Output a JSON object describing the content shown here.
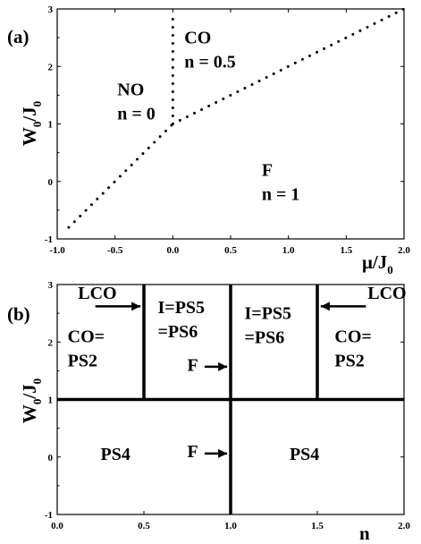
{
  "chart_data": [
    {
      "type": "line",
      "panel_label": "(a)",
      "xlabel": "μ/J₀",
      "ylabel": "W₀/J₀",
      "xlim": [
        -1.0,
        2.0
      ],
      "ylim": [
        -1,
        3
      ],
      "xticks": [
        "-1.0",
        "-0.5",
        "0.0",
        "0.5",
        "1.0",
        "1.5",
        "2.0"
      ],
      "yticks": [
        "-1",
        "0",
        "1",
        "2",
        "3"
      ],
      "series": [
        {
          "style": "dotted",
          "x": [
            -0.9,
            0.0
          ],
          "y": [
            -0.8,
            1.0
          ]
        },
        {
          "style": "dotted",
          "x": [
            0.0,
            0.0
          ],
          "y": [
            1.0,
            2.85
          ]
        },
        {
          "style": "dotted",
          "x": [
            0.0,
            2.0
          ],
          "y": [
            1.0,
            3.0
          ]
        }
      ],
      "regions": [
        {
          "lines": [
            "NO",
            "n = 0"
          ],
          "x": -0.48,
          "y": 1.5
        },
        {
          "lines": [
            "CO",
            "n = 0.5"
          ],
          "x": 0.1,
          "y": 2.4
        },
        {
          "lines": [
            "F",
            "n = 1"
          ],
          "x": 0.77,
          "y": 0.1
        }
      ]
    },
    {
      "type": "line",
      "panel_label": "(b)",
      "xlabel": "n",
      "ylabel": "W₀/J₀",
      "xlim": [
        0.0,
        2.0
      ],
      "ylim": [
        -1,
        3
      ],
      "xticks": [
        "0.0",
        "0.5",
        "1.0",
        "1.5",
        "2.0"
      ],
      "yticks": [
        "-1",
        "0",
        "1",
        "2",
        "3"
      ],
      "series": [
        {
          "style": "solid",
          "x": [
            0.0,
            2.0
          ],
          "y": [
            1,
            1
          ]
        },
        {
          "style": "solid",
          "x": [
            0.5,
            0.5
          ],
          "y": [
            1,
            3
          ]
        },
        {
          "style": "solid",
          "x": [
            1.0,
            1.0
          ],
          "y": [
            -1,
            3
          ]
        },
        {
          "style": "solid",
          "x": [
            1.5,
            1.5
          ],
          "y": [
            1,
            3
          ]
        }
      ],
      "regions": [
        {
          "lines": [
            "CO=",
            "PS2"
          ],
          "x": 0.06,
          "y": 2.0
        },
        {
          "lines": [
            "I=PS5",
            "=PS6"
          ],
          "x": 0.58,
          "y": 2.5
        },
        {
          "lines": [
            "I=PS5",
            "=PS6"
          ],
          "x": 1.08,
          "y": 2.4
        },
        {
          "lines": [
            "CO=",
            "PS2"
          ],
          "x": 1.6,
          "y": 2.0
        },
        {
          "lines": [
            "PS4"
          ],
          "x": 0.25,
          "y": -0.05
        },
        {
          "lines": [
            "PS4"
          ],
          "x": 1.34,
          "y": -0.05
        }
      ],
      "arrows": [
        {
          "text": "LCO",
          "dir": "right",
          "x_from": 0.22,
          "x_to": 0.48,
          "y": 2.62,
          "tx": 0.12,
          "ty": 2.75
        },
        {
          "text": "LCO",
          "dir": "left",
          "x_from": 1.78,
          "x_to": 1.52,
          "y": 2.62,
          "tx": 1.79,
          "ty": 2.75
        },
        {
          "text": "F",
          "dir": "right",
          "x_from": 0.85,
          "x_to": 0.98,
          "y": 1.57,
          "tx": 0.75,
          "ty": 1.5
        },
        {
          "text": "F",
          "dir": "right",
          "x_from": 0.85,
          "x_to": 0.98,
          "y": 0.06,
          "tx": 0.75,
          "ty": 0.0
        }
      ]
    }
  ]
}
